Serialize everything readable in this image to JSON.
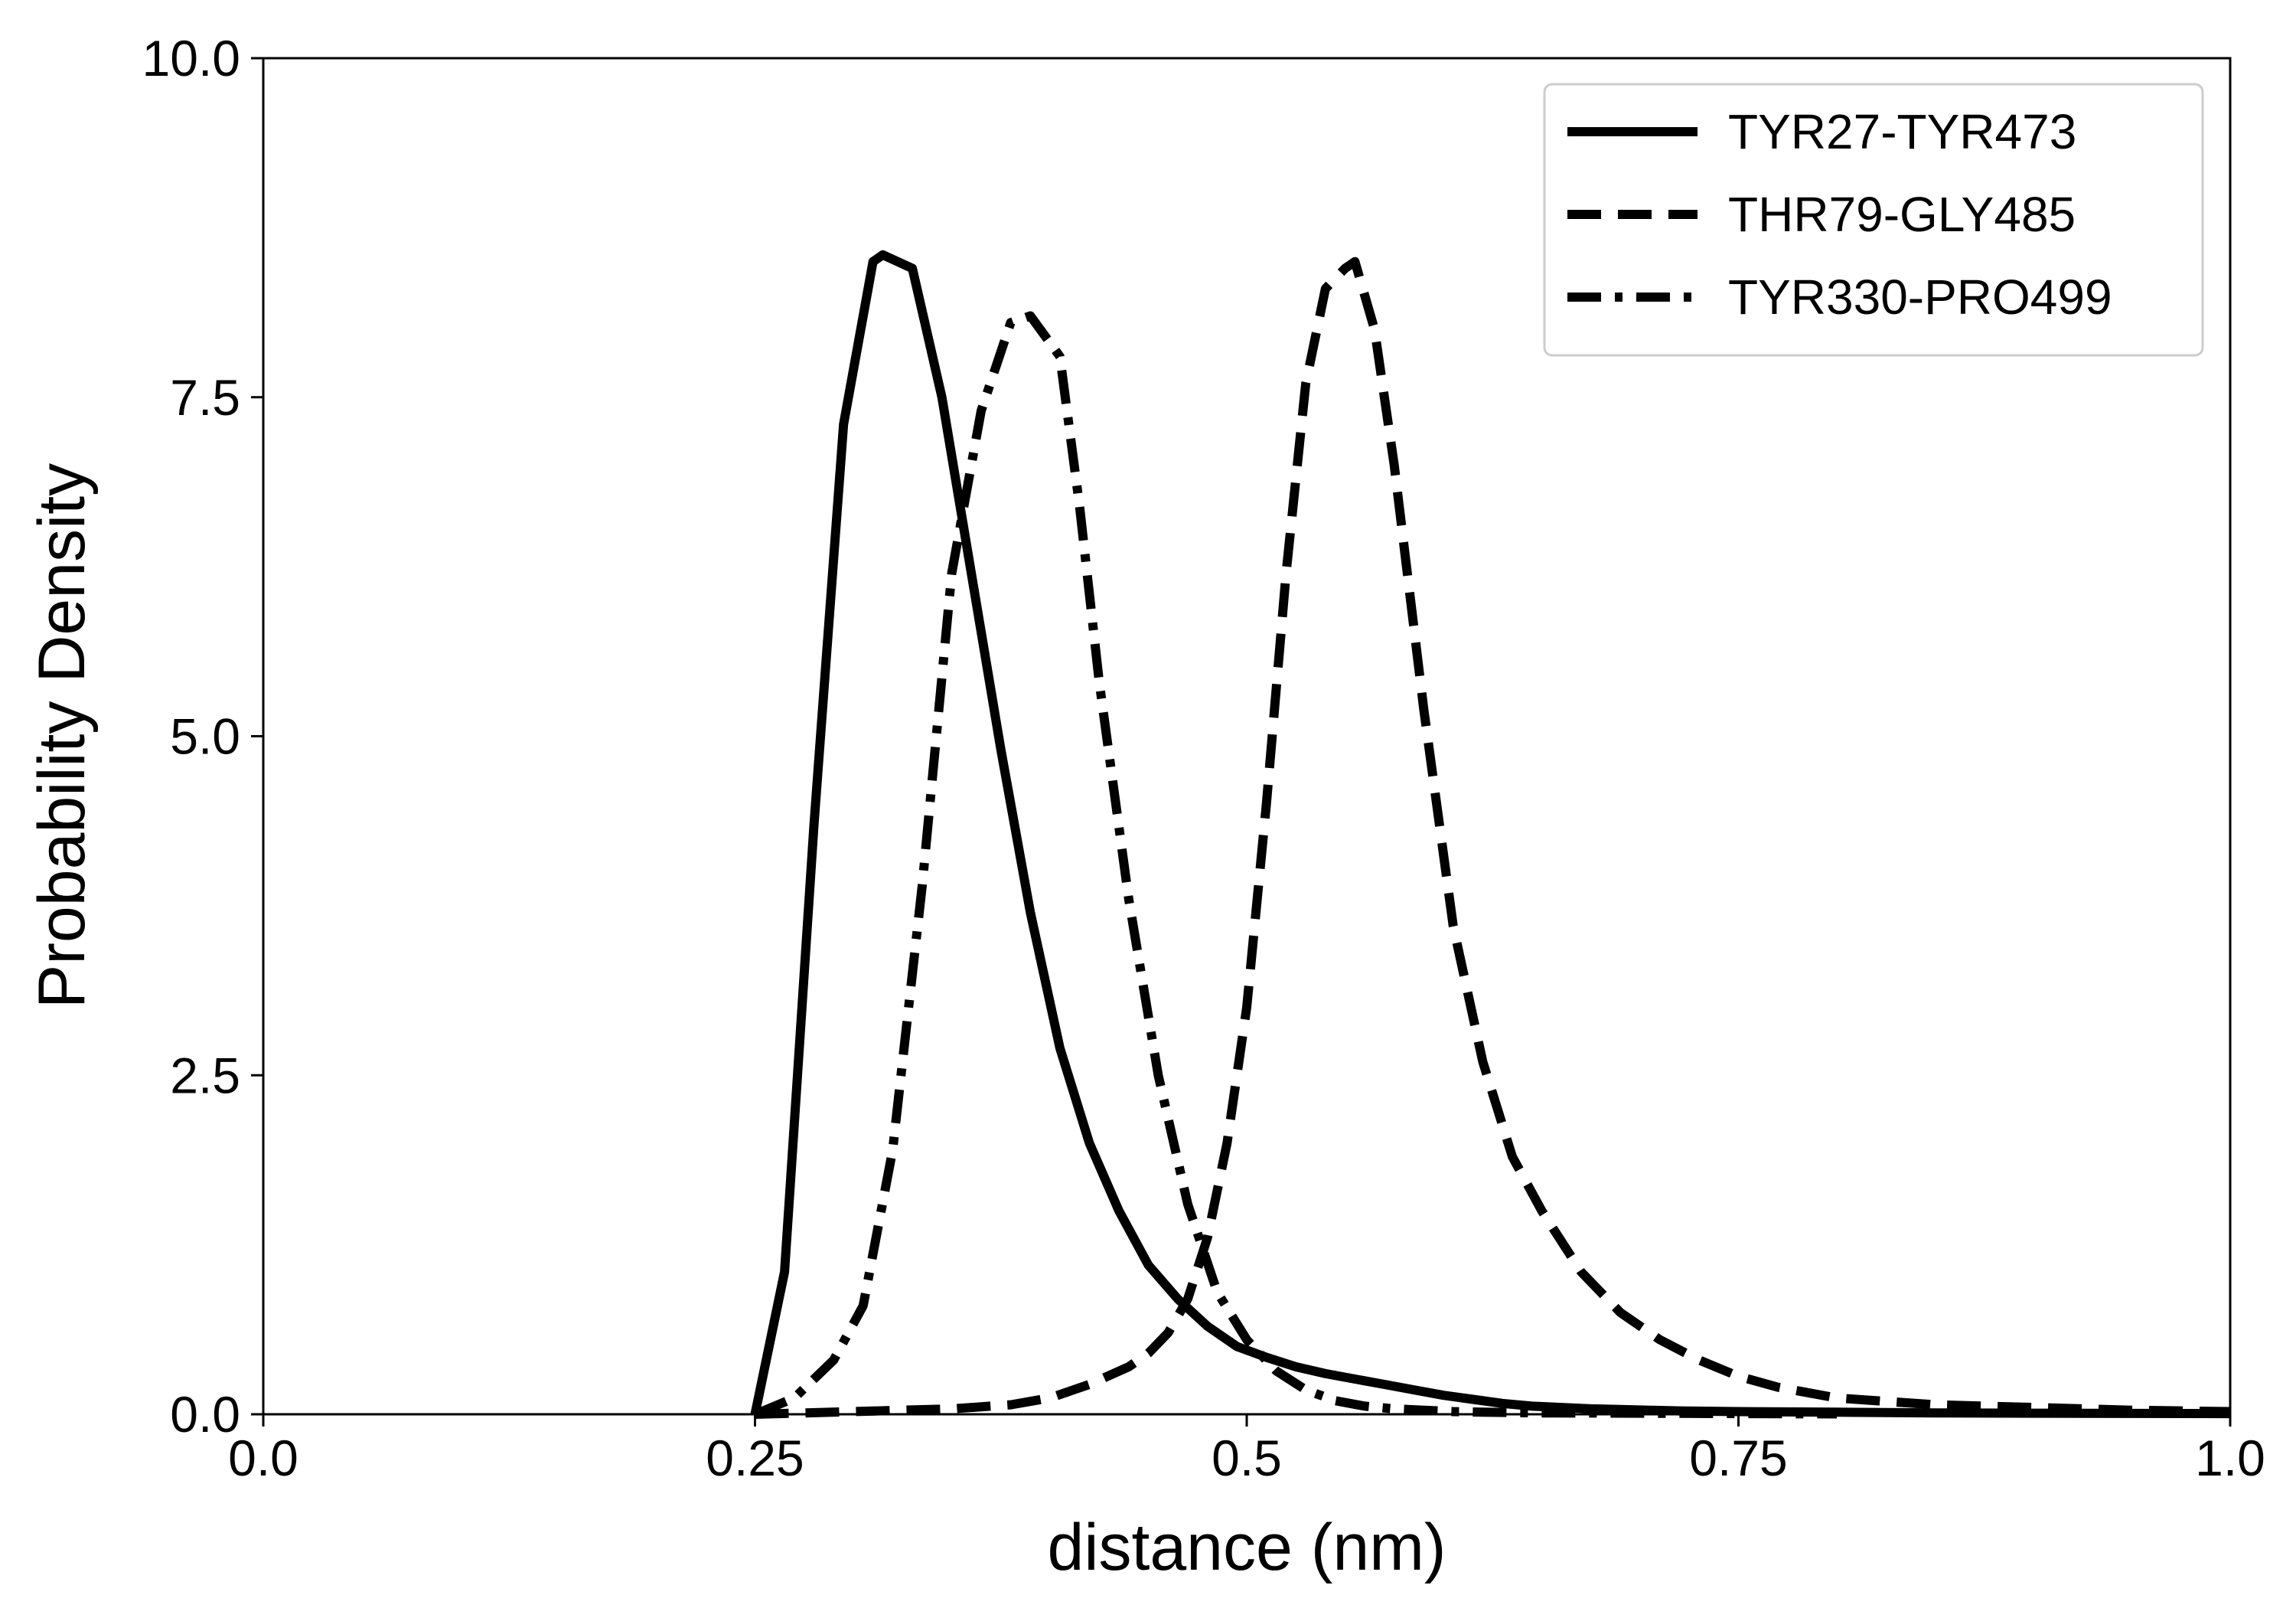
{
  "chart_data": {
    "type": "line",
    "title": "",
    "xlabel": "distance (nm)",
    "ylabel": "Probability Density",
    "xlim": [
      0.0,
      1.0
    ],
    "ylim": [
      0.0,
      10.0
    ],
    "xticks": [
      0.0,
      0.25,
      0.5,
      0.75,
      1.0
    ],
    "xtick_labels": [
      "0.0",
      "0.25",
      "0.5",
      "0.75",
      "1.0"
    ],
    "yticks": [
      0.0,
      2.5,
      5.0,
      7.5,
      10.0
    ],
    "ytick_labels": [
      "0.0",
      "2.5",
      "5.0",
      "7.5",
      "10.0"
    ],
    "grid": false,
    "legend_position": "top-right",
    "line_color": "#000000",
    "series": [
      {
        "name": "TYR27-TYR473",
        "style": "solid",
        "x": [
          0.25,
          0.265,
          0.28,
          0.295,
          0.31,
          0.315,
          0.33,
          0.345,
          0.36,
          0.375,
          0.39,
          0.405,
          0.42,
          0.435,
          0.45,
          0.465,
          0.48,
          0.495,
          0.51,
          0.525,
          0.54,
          0.555,
          0.57,
          0.585,
          0.6,
          0.615,
          0.63,
          0.645,
          0.66,
          0.675,
          0.69,
          0.705,
          0.72,
          0.75,
          0.8,
          0.85,
          0.9,
          0.95,
          1.0
        ],
        "y": [
          0.0,
          1.05,
          4.35,
          7.3,
          8.5,
          8.55,
          8.45,
          7.5,
          6.2,
          4.9,
          3.7,
          2.7,
          2.0,
          1.5,
          1.1,
          0.85,
          0.65,
          0.5,
          0.42,
          0.35,
          0.3,
          0.26,
          0.22,
          0.18,
          0.14,
          0.11,
          0.08,
          0.06,
          0.05,
          0.04,
          0.035,
          0.03,
          0.025,
          0.02,
          0.015,
          0.01,
          0.008,
          0.006,
          0.005
        ]
      },
      {
        "name": "THR79-GLY485",
        "style": "dashed",
        "x": [
          0.25,
          0.3,
          0.35,
          0.38,
          0.4,
          0.42,
          0.44,
          0.45,
          0.46,
          0.47,
          0.48,
          0.49,
          0.5,
          0.51,
          0.52,
          0.53,
          0.54,
          0.55,
          0.555,
          0.565,
          0.575,
          0.59,
          0.605,
          0.62,
          0.635,
          0.65,
          0.67,
          0.69,
          0.71,
          0.73,
          0.75,
          0.77,
          0.8,
          0.85,
          0.9,
          0.95,
          1.0
        ],
        "y": [
          0.0,
          0.02,
          0.04,
          0.07,
          0.12,
          0.22,
          0.35,
          0.45,
          0.6,
          0.85,
          1.3,
          2.0,
          3.0,
          4.5,
          6.2,
          7.6,
          8.3,
          8.45,
          8.5,
          8.0,
          7.0,
          5.2,
          3.6,
          2.6,
          1.9,
          1.5,
          1.05,
          0.75,
          0.55,
          0.4,
          0.28,
          0.2,
          0.12,
          0.07,
          0.05,
          0.03,
          0.02
        ]
      },
      {
        "name": "TYR330-PRO499",
        "style": "dashdot",
        "x": [
          0.25,
          0.27,
          0.29,
          0.305,
          0.32,
          0.335,
          0.35,
          0.365,
          0.38,
          0.39,
          0.395,
          0.405,
          0.415,
          0.425,
          0.44,
          0.455,
          0.47,
          0.485,
          0.5,
          0.515,
          0.53,
          0.545,
          0.56,
          0.575,
          0.59,
          0.605,
          0.62,
          0.65,
          0.7,
          0.75,
          0.8
        ],
        "y": [
          0.0,
          0.12,
          0.4,
          0.8,
          1.95,
          3.9,
          6.2,
          7.4,
          8.05,
          8.1,
          8.0,
          7.8,
          6.7,
          5.4,
          3.8,
          2.5,
          1.55,
          0.9,
          0.55,
          0.32,
          0.18,
          0.1,
          0.06,
          0.04,
          0.03,
          0.02,
          0.015,
          0.01,
          0.008,
          0.005,
          0.003
        ]
      }
    ]
  }
}
